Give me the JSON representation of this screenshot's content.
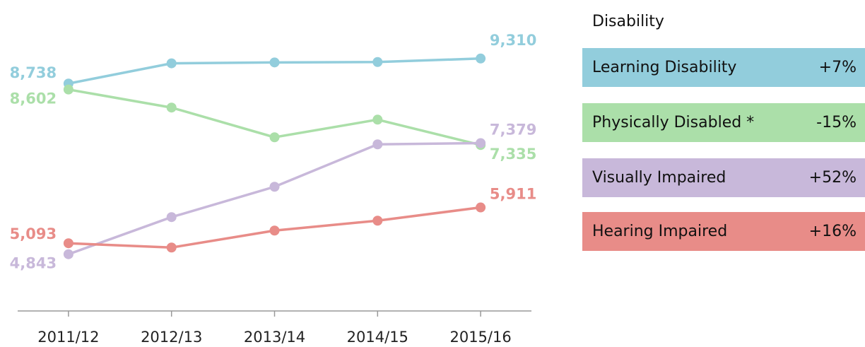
{
  "chart_data": {
    "type": "line",
    "categories": [
      "2011/12",
      "2012/13",
      "2013/14",
      "2014/15",
      "2015/16"
    ],
    "legend_title": "Disability",
    "ylim": [
      4000,
      10000
    ],
    "series": [
      {
        "name": "Learning Disability",
        "change": "+7%",
        "color": "#92cddc",
        "values": [
          8738,
          9200,
          9220,
          9230,
          9310
        ],
        "value_labels": [
          "8,738",
          null,
          null,
          null,
          "9,310"
        ]
      },
      {
        "name": "Physically Disabled *",
        "change": "-15%",
        "color": "#abdfa9",
        "values": [
          8602,
          8190,
          7512,
          7915,
          7335
        ],
        "value_labels": [
          "8,602",
          null,
          null,
          null,
          "7,335"
        ]
      },
      {
        "name": "Visually Impaired",
        "change": "+52%",
        "color": "#c8b8da",
        "values": [
          4843,
          5690,
          6383,
          7351,
          7379
        ],
        "value_labels": [
          "4,843",
          null,
          null,
          null,
          "7,379"
        ]
      },
      {
        "name": "Hearing Impaired",
        "change": "+16%",
        "color": "#e88c88",
        "values": [
          5093,
          4996,
          5383,
          5609,
          5911
        ],
        "value_labels": [
          "5,093",
          null,
          null,
          null,
          "5,911"
        ]
      }
    ]
  }
}
